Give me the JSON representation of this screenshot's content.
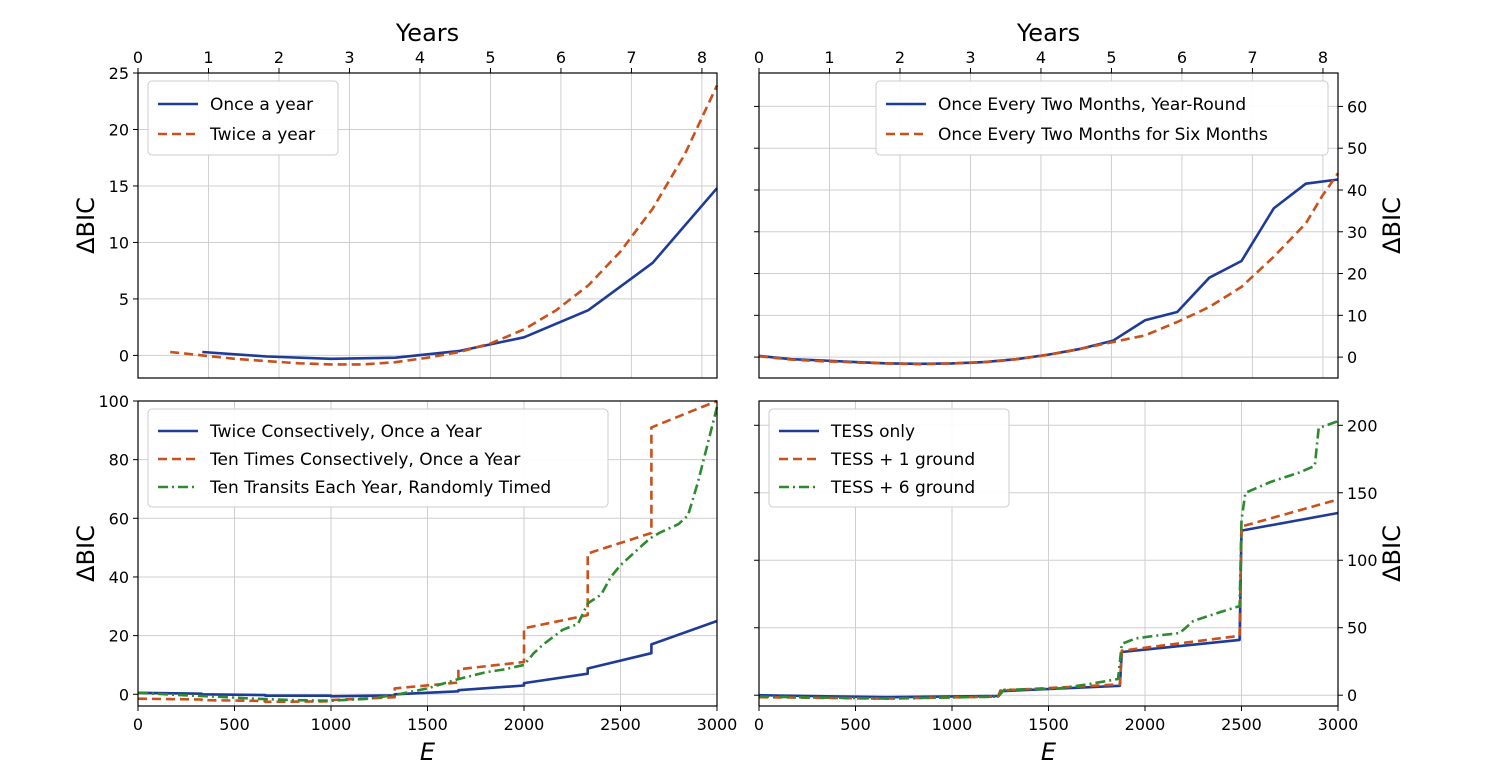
{
  "colors": {
    "blue": "#1f3b98",
    "orange": "#c8511c",
    "green": "#2e8a2e"
  },
  "chart_data": [
    {
      "panel": "top-left",
      "type": "line",
      "top_xlabel": "Years",
      "top_ticks": [
        "0",
        "1",
        "2",
        "3",
        "4",
        "5",
        "6",
        "7",
        "8"
      ],
      "xlim": [
        0,
        3000
      ],
      "ylabel": "ΔBIC",
      "ylim": [
        -2,
        25
      ],
      "yticks": [
        0,
        5,
        10,
        15,
        20,
        25
      ],
      "grid": true,
      "legend_loc": "upper-left",
      "series": [
        {
          "name": "Once a year",
          "style": "solid",
          "color": "#1f3b98",
          "x": [
            333,
            667,
            1000,
            1333,
            1667,
            2000,
            2333,
            2667,
            3000
          ],
          "y": [
            0.3,
            -0.1,
            -0.3,
            -0.2,
            0.4,
            1.6,
            4.0,
            8.2,
            14.8
          ]
        },
        {
          "name": "Twice a year",
          "style": "dashed",
          "color": "#c8511c",
          "x": [
            167,
            333,
            500,
            667,
            833,
            1000,
            1167,
            1333,
            1500,
            1667,
            1833,
            2000,
            2167,
            2333,
            2500,
            2667,
            2833,
            3000
          ],
          "y": [
            0.3,
            0.0,
            -0.3,
            -0.5,
            -0.7,
            -0.8,
            -0.8,
            -0.6,
            -0.2,
            0.3,
            1.1,
            2.3,
            4.0,
            6.2,
            9.2,
            13.0,
            17.8,
            23.9
          ]
        }
      ]
    },
    {
      "panel": "top-right",
      "type": "line",
      "top_xlabel": "Years",
      "top_ticks": [
        "0",
        "1",
        "2",
        "3",
        "4",
        "5",
        "6",
        "7",
        "8"
      ],
      "xlim": [
        0,
        3000
      ],
      "ylabel": "ΔBIC",
      "ylim": [
        -5,
        68
      ],
      "yticks": [
        0,
        10,
        20,
        30,
        40,
        50,
        60
      ],
      "grid": true,
      "legend_loc": "upper-right",
      "series": [
        {
          "name": "Once Every Two Months, Year-Round",
          "style": "solid",
          "color": "#1f3b98",
          "x": [
            0,
            167,
            333,
            500,
            667,
            833,
            1000,
            1167,
            1333,
            1500,
            1667,
            1833,
            2000,
            2167,
            2333,
            2500,
            2667,
            2833,
            3000
          ],
          "y": [
            0.3,
            -0.5,
            -0.8,
            -1.2,
            -1.5,
            -1.6,
            -1.5,
            -1.2,
            -0.5,
            0.6,
            2.0,
            3.9,
            8.8,
            10.8,
            19.0,
            23.0,
            35.6,
            41.5,
            42.5
          ]
        },
        {
          "name": "Once Every Two Months for Six Months",
          "style": "dashed",
          "color": "#c8511c",
          "x": [
            0,
            83,
            167,
            250,
            333,
            417,
            500,
            583,
            667,
            750,
            833,
            917,
            1000,
            1083,
            1167,
            1250,
            1333,
            1417,
            1500,
            1583,
            1667,
            1750,
            1833,
            1917,
            2000,
            2083,
            2167,
            2250,
            2333,
            2417,
            2500,
            2583,
            2667,
            2750,
            2833,
            2917,
            3000
          ],
          "y": [
            0.2,
            -0.2,
            -0.6,
            -0.8,
            -1.0,
            -1.1,
            -1.3,
            -1.4,
            -1.5,
            -1.6,
            -1.7,
            -1.6,
            -1.5,
            -1.4,
            -1.2,
            -0.9,
            -0.5,
            0.0,
            0.6,
            1.2,
            2.0,
            2.8,
            3.6,
            4.4,
            5.2,
            6.8,
            8.4,
            10.2,
            12.0,
            14.4,
            16.8,
            20.4,
            24.0,
            28.0,
            32.0,
            38.5,
            44.0
          ]
        }
      ]
    },
    {
      "panel": "bottom-left",
      "type": "line",
      "xlabel": "E",
      "xlim": [
        0,
        3000
      ],
      "xticks": [
        0,
        500,
        1000,
        1500,
        2000,
        2500,
        3000
      ],
      "ylabel": "ΔBIC",
      "ylim": [
        -4,
        100
      ],
      "yticks": [
        0,
        20,
        40,
        60,
        80,
        100
      ],
      "grid": true,
      "legend_loc": "upper-left",
      "series": [
        {
          "name": "Twice Consectively, Once a Year",
          "style": "solid",
          "color": "#1f3b98",
          "x": [
            0,
            330,
            330,
            660,
            660,
            1000,
            1000,
            1330,
            1330,
            1660,
            1660,
            2000,
            2000,
            2330,
            2330,
            2660,
            2660,
            3000
          ],
          "y": [
            0.5,
            0.2,
            0.0,
            -0.3,
            -0.5,
            -0.5,
            -0.7,
            -0.4,
            0.0,
            1.0,
            1.4,
            3.0,
            3.8,
            7.0,
            8.8,
            14.0,
            17.0,
            25.0
          ]
        },
        {
          "name": "Ten Times Consectively, Once a Year",
          "style": "dashed",
          "color": "#c8511c",
          "x": [
            0,
            330,
            330,
            660,
            660,
            1000,
            1000,
            1330,
            1330,
            1660,
            1660,
            2000,
            2000,
            2330,
            2330,
            2660,
            2660,
            3000
          ],
          "y": [
            -1.5,
            -1.8,
            -2.0,
            -2.3,
            -2.6,
            -2.4,
            -2.0,
            -1.0,
            2.0,
            4.0,
            8.5,
            11.0,
            22.5,
            27.0,
            48.0,
            55.0,
            91.0,
            100.0
          ]
        },
        {
          "name": "Ten Transits Each Year, Randomly Timed",
          "style": "dashdot",
          "color": "#2e8a2e",
          "x": [
            0,
            200,
            400,
            600,
            800,
            1000,
            1200,
            1350,
            1500,
            1650,
            1800,
            1900,
            2000,
            2050,
            2100,
            2200,
            2280,
            2330,
            2400,
            2450,
            2500,
            2550,
            2600,
            2650,
            2700,
            2800,
            2850,
            2900,
            2950,
            3000
          ],
          "y": [
            0.5,
            -0.2,
            -0.8,
            -1.5,
            -2.0,
            -2.2,
            -1.5,
            0.0,
            2.0,
            5.0,
            7.5,
            8.5,
            10.0,
            14.0,
            17.0,
            22.0,
            24.0,
            31.0,
            34.0,
            40.0,
            44.0,
            47.0,
            50.0,
            53.0,
            55.0,
            58.0,
            61.0,
            72.0,
            85.0,
            98.0
          ]
        }
      ]
    },
    {
      "panel": "bottom-right",
      "type": "line",
      "xlabel": "E",
      "xlim": [
        0,
        3000
      ],
      "xticks": [
        0,
        500,
        1000,
        1500,
        2000,
        2500,
        3000
      ],
      "ylabel": "ΔBIC",
      "ylim": [
        -8,
        218
      ],
      "yticks": [
        0,
        50,
        100,
        150,
        200
      ],
      "grid": true,
      "legend_loc": "upper-left",
      "series": [
        {
          "name": "TESS only",
          "style": "solid",
          "color": "#1f3b98",
          "x": [
            0,
            650,
            1240,
            1250,
            1870,
            1880,
            2490,
            2500,
            3000
          ],
          "y": [
            0.0,
            -1.5,
            -0.5,
            3.0,
            7.0,
            32.0,
            41.0,
            122.0,
            135.0
          ]
        },
        {
          "name": "TESS + 1 ground",
          "style": "dashed",
          "color": "#c8511c",
          "x": [
            0,
            650,
            1240,
            1250,
            1870,
            1880,
            2490,
            2500,
            3000
          ],
          "y": [
            -1.5,
            -2.5,
            -1.0,
            3.5,
            8.0,
            33.0,
            44.0,
            125.0,
            145.0
          ]
        },
        {
          "name": "TESS + 6 ground",
          "style": "dashdot",
          "color": "#2e8a2e",
          "x": [
            0,
            650,
            1240,
            1270,
            1550,
            1700,
            1860,
            1880,
            1950,
            2050,
            2180,
            2250,
            2400,
            2490,
            2500,
            2520,
            2650,
            2800,
            2880,
            2900,
            3000
          ],
          "y": [
            -1.0,
            -2.5,
            -1.0,
            4.0,
            5.0,
            8.0,
            12.0,
            38.0,
            42.0,
            44.0,
            46.0,
            55.0,
            62.0,
            66.0,
            130.0,
            150.0,
            158.0,
            165.0,
            170.0,
            198.0,
            203.0
          ]
        }
      ]
    }
  ]
}
